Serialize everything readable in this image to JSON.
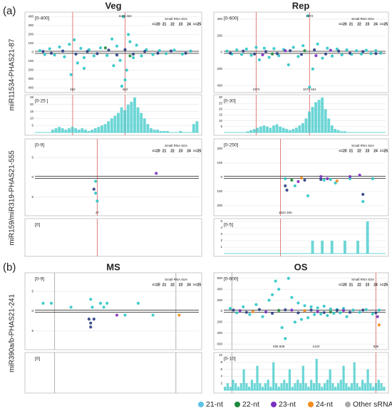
{
  "panel_labels": [
    "(a)",
    "(b)"
  ],
  "column_titles": [
    "Veg",
    "Rep",
    "MS",
    "OS"
  ],
  "row_labels": [
    "miR11534-PHAS21-87",
    "miR159/miR319-PHAS21-555",
    "miR390a/b-PHAS21-241"
  ],
  "size_legend": {
    "title": "Small RNA Size",
    "labels": [
      "<=20",
      "21",
      "22",
      "23",
      "24",
      ">=25"
    ],
    "colors": [
      "#333333",
      "#2ec5c7",
      "#1e8a3c",
      "#7a2fc0",
      "#f28c1e",
      "#333333"
    ]
  },
  "legend": [
    {
      "name": "21-nt",
      "color": "#5bc2e7"
    },
    {
      "name": "22-nt",
      "color": "#1e8a3c"
    },
    {
      "name": "23-nt",
      "color": "#7a2fc0"
    },
    {
      "name": "24-nt",
      "color": "#f28c1e"
    },
    {
      "name": "Other sRNA",
      "color": "#aaaaaa"
    }
  ],
  "chart_data": [
    {
      "type": "scatter",
      "range_label": "[0-400]",
      "xlim": [
        0,
        100
      ],
      "ylim": [
        -420,
        420
      ],
      "yticks": [
        400,
        300,
        200,
        100,
        0,
        {
          "value": -100,
          "label": "100"
        },
        {
          "value": -200,
          "label": "200"
        },
        {
          "value": -300,
          "label": "300"
        },
        {
          "value": -400,
          "label": "400"
        }
      ],
      "markers": [
        {
          "x": 23,
          "color": "#e07070"
        },
        {
          "x": 55,
          "color": "#e07070"
        }
      ],
      "annotations": [
        {
          "x": 55,
          "text": "1160 462",
          "position": "top"
        },
        {
          "x": 23,
          "text": "462",
          "position": "bottom"
        },
        {
          "x": 55,
          "text": "462",
          "position": "bottom"
        }
      ],
      "series": [
        {
          "color": "#2ec5c7",
          "x": [
            3,
            6,
            9,
            12,
            15,
            18,
            21,
            24,
            26,
            28,
            30,
            33,
            36,
            40,
            44,
            47,
            50,
            52,
            54,
            56,
            58,
            60,
            62,
            65,
            68,
            72,
            76,
            80,
            85,
            90,
            95,
            22,
            48,
            55,
            57,
            53,
            30
          ],
          "values": [
            20,
            -25,
            40,
            -30,
            60,
            -50,
            90,
            140,
            -120,
            45,
            -60,
            30,
            -40,
            50,
            -35,
            150,
            70,
            -90,
            400,
            -200,
            120,
            -60,
            80,
            -40,
            30,
            -25,
            20,
            -15,
            25,
            -20,
            15,
            -250,
            -150,
            -310,
            200,
            -380,
            -180
          ]
        },
        {
          "color": "#2b3f86",
          "x": [
            5,
            10,
            17,
            25,
            32,
            38,
            45,
            50,
            55,
            60,
            67,
            75,
            83,
            92
          ],
          "values": [
            10,
            -10,
            15,
            -20,
            10,
            -15,
            25,
            -30,
            30,
            -20,
            10,
            -10,
            15,
            -10
          ]
        },
        {
          "color": "#1e8a3c",
          "x": [
            43,
            58
          ],
          "values": [
            50,
            -40
          ]
        }
      ]
    },
    {
      "type": "area",
      "range_label": "[0-25 ]",
      "ylim": [
        0,
        25
      ],
      "yticks": [
        5,
        10,
        15,
        20,
        25
      ],
      "color": "#3cc8c8",
      "markers": [
        {
          "x": 23,
          "color": "#e07070"
        },
        {
          "x": 55,
          "color": "#e07070"
        }
      ],
      "values": [
        0,
        0,
        0,
        0,
        0,
        2,
        3,
        4,
        3,
        2,
        3,
        4,
        3,
        2,
        3,
        2,
        1,
        2,
        3,
        4,
        5,
        6,
        8,
        10,
        12,
        14,
        18,
        16,
        20,
        22,
        25,
        18,
        14,
        10,
        6,
        3,
        2,
        2,
        1,
        1,
        1,
        0,
        0,
        0,
        1,
        0,
        0,
        0,
        6,
        8
      ]
    },
    {
      "type": "scatter",
      "range_label": "[0-600]",
      "xlim": [
        0,
        100
      ],
      "ylim": [
        -450,
        450
      ],
      "yticks": [
        400,
        200,
        0,
        {
          "value": -200,
          "label": "200"
        },
        {
          "value": -400,
          "label": "400"
        }
      ],
      "markers": [
        {
          "x": 20,
          "color": "#e07070"
        },
        {
          "x": 53,
          "color": "#e07070"
        }
      ],
      "annotations": [
        {
          "x": 53,
          "text": "1072",
          "position": "top"
        },
        {
          "x": 20,
          "text": "1072",
          "position": "bottom"
        },
        {
          "x": 53,
          "text": "1072 461",
          "position": "bottom"
        }
      ],
      "series": [
        {
          "color": "#2ec5c7",
          "x": [
            2,
            5,
            8,
            11,
            14,
            17,
            20,
            22,
            25,
            28,
            31,
            34,
            37,
            40,
            43,
            46,
            49,
            52,
            53,
            55,
            58,
            61,
            64,
            67,
            70,
            73,
            76,
            79,
            82,
            85,
            88,
            91,
            94,
            97
          ],
          "values": [
            15,
            -20,
            30,
            -25,
            40,
            -35,
            60,
            -90,
            50,
            -60,
            45,
            -40,
            35,
            -150,
            60,
            -50,
            80,
            440,
            -420,
            -200,
            100,
            -70,
            50,
            -45,
            40,
            -30,
            30,
            -25,
            20,
            -20,
            25,
            -15,
            20,
            -10
          ]
        },
        {
          "color": "#2b3f86",
          "x": [
            4,
            12,
            19,
            26,
            33,
            41,
            48,
            56,
            63,
            71,
            78,
            86,
            94
          ],
          "values": [
            -10,
            15,
            -20,
            10,
            -15,
            20,
            -25,
            30,
            -20,
            15,
            -10,
            10,
            -15
          ]
        },
        {
          "color": "#7a2fc0",
          "x": [
            24,
            38,
            57,
            66
          ],
          "values": [
            -30,
            20,
            -40,
            25
          ]
        },
        {
          "color": "#1e8a3c",
          "x": [
            30,
            50
          ],
          "values": [
            -20,
            20
          ]
        }
      ]
    },
    {
      "type": "area",
      "range_label": "[0-30]",
      "ylim": [
        0,
        30
      ],
      "yticks": [
        5,
        10,
        15,
        20,
        25,
        30
      ],
      "color": "#3cc8c8",
      "markers": [
        {
          "x": 20,
          "color": "#e07070"
        },
        {
          "x": 53,
          "color": "#e07070"
        }
      ],
      "values": [
        0,
        0,
        0,
        0,
        0,
        0,
        0,
        1,
        2,
        3,
        4,
        5,
        6,
        5,
        4,
        6,
        7,
        5,
        4,
        3,
        2,
        3,
        4,
        6,
        8,
        12,
        18,
        22,
        26,
        28,
        30,
        20,
        12,
        6,
        3,
        2,
        1,
        1,
        0,
        0,
        0,
        0,
        0,
        0,
        0,
        0,
        0,
        0,
        0,
        0
      ]
    },
    {
      "type": "scatter",
      "range_label": "[0-9]",
      "xlim": [
        0,
        100
      ],
      "ylim": [
        -9,
        9
      ],
      "yticks": [
        5,
        0,
        {
          "value": -5,
          "label": "5"
        }
      ],
      "markers": [
        {
          "x": 38,
          "color": "#e07070"
        }
      ],
      "annotations": [
        {
          "x": 38,
          "text": "47",
          "position": "bottom"
        }
      ],
      "series": [
        {
          "color": "#2ec5c7",
          "x": [
            37,
            37,
            38
          ],
          "values": [
            -1,
            -4,
            -6
          ]
        },
        {
          "color": "#2b3f86",
          "x": [
            36
          ],
          "values": [
            -3
          ]
        },
        {
          "color": "#7a2fc0",
          "x": [
            74
          ],
          "values": [
            1
          ]
        }
      ]
    },
    {
      "type": "area",
      "range_label": "[0]",
      "markers": [
        {
          "x": 38,
          "color": "#e07070"
        }
      ],
      "values": []
    },
    {
      "type": "scatter",
      "range_label": "[0-250]",
      "xlim": [
        0,
        100
      ],
      "ylim": [
        -250,
        250
      ],
      "yticks": [
        200,
        100,
        0,
        {
          "value": -100,
          "label": "100"
        },
        {
          "value": -200,
          "label": "200"
        }
      ],
      "markers": [
        {
          "x": 35,
          "color": "#e07070"
        }
      ],
      "annotations": [
        {
          "x": 38,
          "text": "1522 460",
          "position": "bottom"
        }
      ],
      "series": [
        {
          "color": "#2ec5c7",
          "x": [
            38,
            44,
            52,
            62,
            66,
            69,
            78,
            86,
            92
          ],
          "values": [
            -10,
            -60,
            -130,
            -20,
            -15,
            -40,
            -10,
            -170,
            -10
          ]
        },
        {
          "color": "#2b3f86",
          "x": [
            38,
            39,
            50,
            60,
            86
          ],
          "values": [
            -60,
            -90,
            -20,
            -15,
            -120
          ]
        },
        {
          "color": "#7a2fc0",
          "x": [
            46,
            60,
            64,
            78,
            84
          ],
          "values": [
            -30,
            5,
            -10,
            5,
            15
          ]
        },
        {
          "color": "#f28c1e",
          "x": [
            48,
            70
          ],
          "values": [
            -5,
            -25
          ]
        },
        {
          "color": "#1e8a3c",
          "x": [
            42
          ],
          "values": [
            -20
          ]
        }
      ]
    },
    {
      "type": "area",
      "range_label": "[0-5]",
      "ylim": [
        0,
        5
      ],
      "yticks": [
        1,
        2,
        3,
        4,
        5
      ],
      "color": "#3cc8c8",
      "markers": [
        {
          "x": 35,
          "color": "#e07070"
        }
      ],
      "values": [
        0,
        0,
        0,
        0,
        0,
        0,
        0,
        0,
        0,
        0,
        0,
        0,
        0,
        0,
        0,
        0,
        0,
        0,
        0,
        0,
        0,
        0,
        0,
        0,
        0,
        0,
        0,
        2,
        0,
        0,
        2,
        0,
        0,
        2,
        0,
        0,
        0,
        2,
        0,
        0,
        0,
        2,
        0,
        0,
        5,
        0,
        0,
        0,
        0,
        0
      ]
    },
    {
      "type": "scatter",
      "range_label": "[0-9]",
      "xlim": [
        0,
        100
      ],
      "ylim": [
        -9,
        9
      ],
      "yticks": [
        5,
        0,
        {
          "value": -5,
          "label": "5"
        }
      ],
      "markers": [
        {
          "x": 12,
          "color": "#aaaaaa"
        },
        {
          "x": 86,
          "color": "#aaaaaa"
        }
      ],
      "series": [
        {
          "color": "#2ec5c7",
          "x": [
            5,
            10,
            22,
            34,
            35,
            40,
            42,
            44,
            55,
            63,
            72
          ],
          "values": [
            2,
            2,
            1,
            3,
            1,
            2,
            1,
            2,
            -1,
            2,
            -1
          ]
        },
        {
          "color": "#2b3f86",
          "x": [
            33,
            34,
            34,
            36
          ],
          "values": [
            -2,
            -3,
            -4,
            -2
          ]
        },
        {
          "color": "#7a2fc0",
          "x": [
            50
          ],
          "values": [
            -1
          ]
        },
        {
          "color": "#f28c1e",
          "x": [
            88
          ],
          "values": [
            -1
          ]
        }
      ]
    },
    {
      "type": "area",
      "range_label": "[0]",
      "markers": [
        {
          "x": 12,
          "color": "#aaaaaa"
        },
        {
          "x": 86,
          "color": "#aaaaaa"
        }
      ],
      "values": []
    },
    {
      "type": "scatter",
      "range_label": "[0-600]",
      "xlim": [
        0,
        100
      ],
      "ylim": [
        -650,
        650
      ],
      "yticks": [
        600,
        400,
        200,
        0,
        {
          "value": -200,
          "label": "200"
        },
        {
          "value": -400,
          "label": "400"
        },
        {
          "value": -600,
          "label": "600"
        }
      ],
      "markers": [
        {
          "x": 5,
          "color": "#aaaaaa"
        },
        {
          "x": 94,
          "color": "#e07070"
        }
      ],
      "annotations": [
        {
          "x": 34,
          "text": "936 608",
          "position": "bottom"
        },
        {
          "x": 57,
          "text": "1420",
          "position": "bottom"
        },
        {
          "x": 94,
          "text": "839",
          "position": "bottom"
        }
      ],
      "series": [
        {
          "color": "#2ec5c7",
          "x": [
            4,
            8,
            12,
            16,
            20,
            24,
            28,
            30,
            32,
            34,
            36,
            38,
            40,
            42,
            44,
            46,
            48,
            50,
            52,
            54,
            56,
            58,
            60,
            62,
            64,
            66,
            68,
            70,
            72,
            74,
            76,
            80,
            84,
            88,
            92,
            96
          ],
          "values": [
            50,
            -30,
            80,
            -60,
            120,
            -100,
            200,
            300,
            550,
            400,
            -300,
            -500,
            600,
            250,
            -200,
            150,
            -150,
            100,
            -120,
            80,
            -60,
            60,
            -50,
            90,
            -80,
            40,
            -40,
            30,
            -30,
            50,
            -100,
            20,
            -20,
            30,
            -50,
            20
          ]
        },
        {
          "color": "#2b3f86",
          "x": [
            6,
            14,
            22,
            30,
            38,
            46,
            54,
            62,
            70,
            78,
            86,
            94
          ],
          "values": [
            20,
            -20,
            30,
            -40,
            25,
            -30,
            20,
            -25,
            15,
            -20,
            20,
            -30
          ]
        },
        {
          "color": "#7a2fc0",
          "x": [
            10,
            26,
            42,
            58,
            74,
            95
          ],
          "values": [
            10,
            -15,
            20,
            -10,
            15,
            -100
          ]
        },
        {
          "color": "#f28c1e",
          "x": [
            18,
            50,
            96
          ],
          "values": [
            -10,
            10,
            -250
          ]
        },
        {
          "color": "#1e8a3c",
          "x": [
            34,
            66
          ],
          "values": [
            15,
            -15
          ]
        }
      ]
    },
    {
      "type": "area",
      "range_label": "[0-10]",
      "ylim": [
        0,
        10
      ],
      "yticks": [
        2,
        4,
        6,
        8,
        10
      ],
      "color": "#3cc8c8",
      "markers": [
        {
          "x": 5,
          "color": "#aaaaaa"
        },
        {
          "x": 94,
          "color": "#e07070"
        }
      ],
      "values": [
        1,
        2,
        1,
        3,
        2,
        1,
        2,
        6,
        2,
        1,
        3,
        2,
        7,
        2,
        1,
        2,
        3,
        1,
        8,
        2,
        1,
        2,
        3,
        2,
        6,
        1,
        2,
        3,
        2,
        7,
        2,
        1,
        3,
        2,
        9,
        2,
        1,
        2,
        3,
        6,
        2,
        1,
        2,
        3,
        7,
        2,
        1,
        2,
        8,
        2,
        1,
        3,
        2,
        6,
        2,
        1,
        2,
        3,
        2,
        1
      ]
    }
  ]
}
